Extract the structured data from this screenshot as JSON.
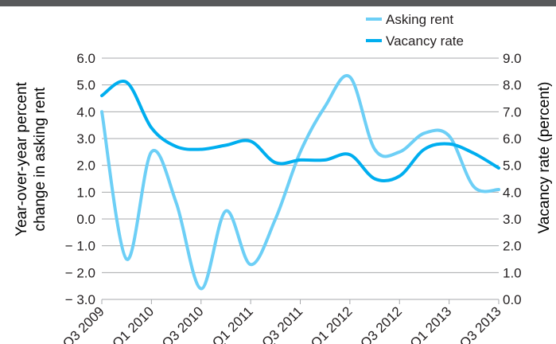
{
  "chart_data": {
    "type": "line",
    "x": [
      "Q3 2009",
      "Q4 2009",
      "Q1 2010",
      "Q2 2010",
      "Q3 2010",
      "Q4 2010",
      "Q1 2011",
      "Q2 2011",
      "Q3 2011",
      "Q4 2011",
      "Q1 2012",
      "Q2 2012",
      "Q3 2012",
      "Q4 2012",
      "Q1 2013",
      "Q2 2013",
      "Q3 2013"
    ],
    "x_tick_labels": [
      "Q3 2009",
      "Q1 2010",
      "Q3 2010",
      "Q1 2011",
      "Q3 2011",
      "Q1 2012",
      "Q3 2012",
      "Q1 2013",
      "Q3 2013"
    ],
    "series": [
      {
        "name": "Asking rent",
        "axis": "left",
        "color": "#6dcff6",
        "values": [
          4.0,
          -1.5,
          2.5,
          0.6,
          -2.6,
          0.3,
          -1.7,
          0.0,
          2.5,
          4.2,
          5.3,
          2.6,
          2.5,
          3.2,
          3.1,
          1.2,
          1.1
        ]
      },
      {
        "name": "Vacancy rate",
        "axis": "right",
        "color": "#00aeef",
        "values": [
          7.6,
          8.1,
          6.4,
          5.7,
          5.6,
          5.75,
          5.9,
          5.1,
          5.2,
          5.2,
          5.4,
          4.5,
          4.6,
          5.6,
          5.8,
          5.45,
          4.9
        ]
      }
    ],
    "ylabel_left": "Year-over-year percent change in asking rent",
    "ylabel_left_lines": [
      "Year-over-year percent",
      "change in asking rent"
    ],
    "ylabel_right": "Vacancy rate (percent)",
    "ylim_left": [
      -3.0,
      6.0
    ],
    "ylim_right": [
      0.0,
      9.0
    ],
    "yticks_left": [
      "6.0",
      "5.0",
      "4.0",
      "3.0",
      "2.0",
      "1.0",
      "0.0",
      "− 1.0",
      "− 2.0",
      "− 3.0"
    ],
    "yticks_right": [
      "9.0",
      "8.0",
      "7.0",
      "6.0",
      "5.0",
      "4.0",
      "3.0",
      "2.0",
      "1.0",
      "0.0"
    ],
    "grid": true,
    "legend_position": "top-right",
    "title": "",
    "xlabel": ""
  }
}
